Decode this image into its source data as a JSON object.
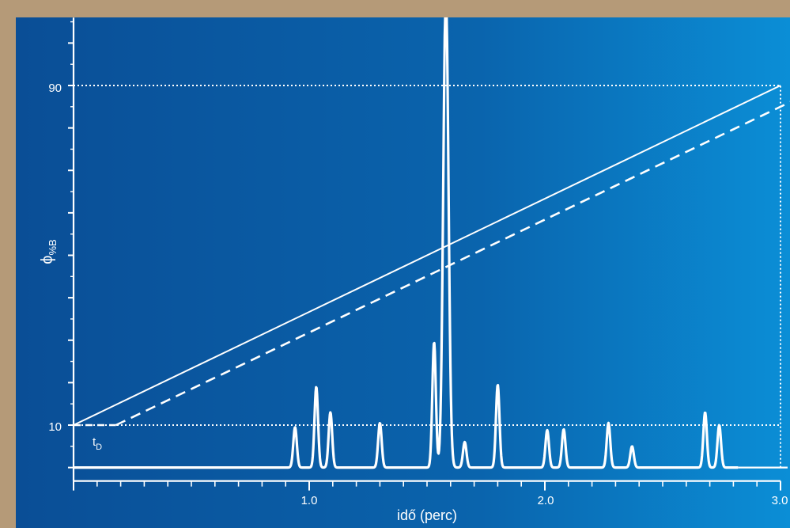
{
  "chart_data": {
    "type": "line",
    "title": "",
    "xlabel": "idő (perc)",
    "ylabel_main": "ϕ",
    "ylabel_sub": "%B",
    "xlim": [
      0.0,
      3.0
    ],
    "x_ticks": [
      1.0,
      2.0,
      3.0
    ],
    "x_tick_labels": [
      "1.0",
      "2.0",
      "3.0"
    ],
    "y_ticks": [
      10,
      90
    ],
    "y_tick_labels": [
      "10",
      "90"
    ],
    "ylim": [
      -0.5,
      106
    ],
    "grid": false,
    "legend": "none",
    "annotations": [
      {
        "text_main": "t",
        "text_sub": "D",
        "x": 0.1,
        "y": 6.5
      }
    ],
    "series": [
      {
        "style": "solid",
        "points": [
          [
            0.0,
            10
          ],
          [
            3.0,
            90
          ]
        ]
      },
      {
        "style": "dashed",
        "points": [
          [
            0.18,
            10
          ],
          [
            3.0,
            85
          ]
        ]
      }
    ],
    "reference_lines": [
      {
        "style": "dotted",
        "axis": "y",
        "value": 90,
        "from_x": 0.0,
        "to_x": 3.0
      },
      {
        "style": "dotted",
        "axis": "y",
        "value": 10,
        "from_x": 0.0,
        "to_x": 3.0
      },
      {
        "style": "dotted",
        "axis": "x",
        "value": 3.0,
        "from_y": 0,
        "to_y": 90
      }
    ],
    "chromatogram": {
      "baseline": 0,
      "peaks": [
        {
          "t": 0.94,
          "h": 9.5
        },
        {
          "t": 1.03,
          "h": 19
        },
        {
          "t": 1.09,
          "h": 13
        },
        {
          "t": 1.3,
          "h": 10.5
        },
        {
          "t": 1.53,
          "h": 29.5
        },
        {
          "t": 1.58,
          "h": 112,
          "saturated": true
        },
        {
          "t": 1.66,
          "h": 6
        },
        {
          "t": 1.8,
          "h": 19.5
        },
        {
          "t": 2.01,
          "h": 8.8
        },
        {
          "t": 2.08,
          "h": 9
        },
        {
          "t": 2.27,
          "h": 10.5
        },
        {
          "t": 2.37,
          "h": 5
        },
        {
          "t": 2.68,
          "h": 13
        },
        {
          "t": 2.74,
          "h": 10
        }
      ]
    }
  },
  "colors": {
    "panel_left": "#0a4e96",
    "panel_mid": "#0a64ad",
    "panel_right": "#0b8ed6",
    "ink": "#ffffff",
    "background": "#b59a78"
  }
}
